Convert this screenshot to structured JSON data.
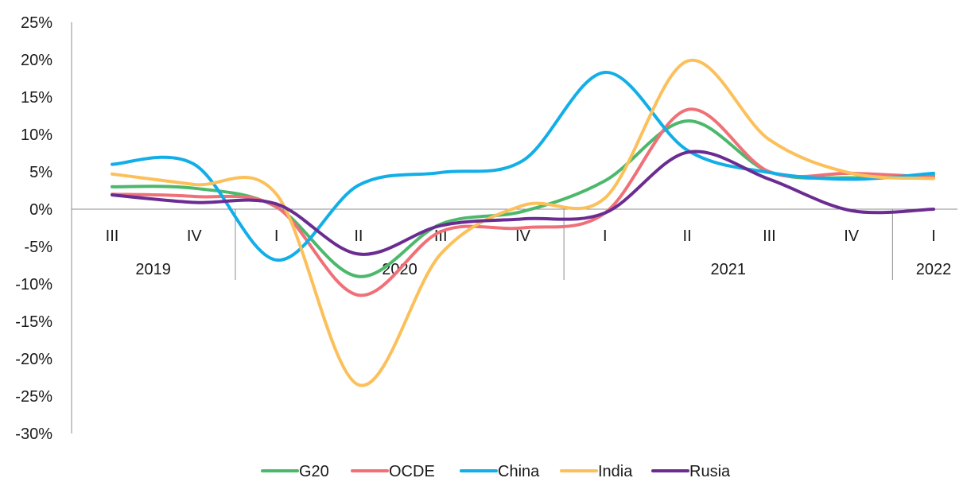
{
  "chart_data": {
    "type": "line",
    "title": "",
    "xlabel": "",
    "ylabel": "",
    "ylim": [
      -30,
      25
    ],
    "y_ticks": [
      25,
      20,
      15,
      10,
      5,
      0,
      -5,
      -10,
      -15,
      -20,
      -25,
      -30
    ],
    "y_tick_labels": [
      "25%",
      "20%",
      "15%",
      "10%",
      "5%",
      "0%",
      "-5%",
      "-10%",
      "-15%",
      "-20%",
      "-25%",
      "-30%"
    ],
    "categories": [
      "III",
      "IV",
      "I",
      "II",
      "III",
      "IV",
      "I",
      "II",
      "III",
      "IV",
      "I"
    ],
    "year_groups": [
      {
        "label": "2019",
        "start": 0,
        "end": 1
      },
      {
        "label": "2020",
        "start": 2,
        "end": 5
      },
      {
        "label": "2021",
        "start": 6,
        "end": 9
      },
      {
        "label": "2022",
        "start": 10,
        "end": 10
      }
    ],
    "grid": false,
    "legend_position": "bottom",
    "series": [
      {
        "name": "G20",
        "color": "#4cb86b",
        "values": [
          3.0,
          2.8,
          0.3,
          -9.0,
          -2.0,
          -0.3,
          3.8,
          11.8,
          5.0,
          4.2,
          4.5
        ]
      },
      {
        "name": "OCDE",
        "color": "#f07078",
        "values": [
          2.0,
          1.7,
          0.3,
          -11.5,
          -3.0,
          -2.5,
          -0.5,
          13.3,
          5.0,
          4.8,
          4.3
        ]
      },
      {
        "name": "China",
        "color": "#12aee8",
        "values": [
          6.0,
          6.0,
          -6.8,
          3.2,
          4.9,
          6.5,
          18.3,
          7.9,
          4.9,
          4.0,
          4.8
        ]
      },
      {
        "name": "India",
        "color": "#fcc05a",
        "values": [
          4.7,
          3.3,
          2.0,
          -23.5,
          -6.0,
          0.5,
          1.5,
          19.8,
          9.3,
          4.8,
          4.1
        ]
      },
      {
        "name": "Rusia",
        "color": "#6a2c91",
        "values": [
          1.9,
          0.9,
          0.7,
          -6.0,
          -2.2,
          -1.3,
          -0.5,
          7.6,
          4.0,
          -0.2,
          0.0
        ]
      }
    ]
  }
}
